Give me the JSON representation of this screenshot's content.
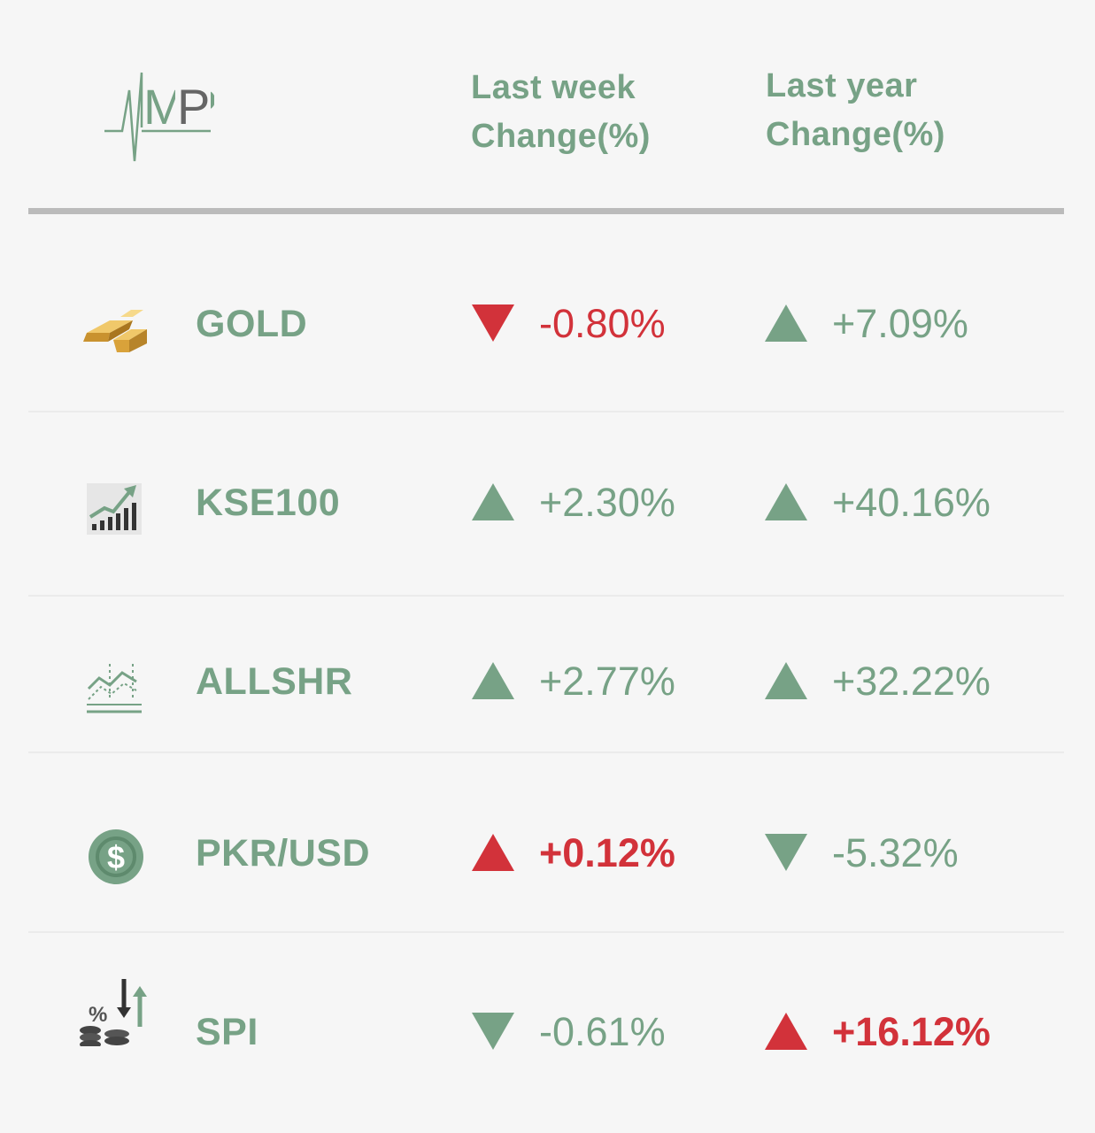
{
  "colors": {
    "accent": "#77a286",
    "negative": "#d2323a",
    "rule": "#bbbbbb",
    "background": "#f6f6f6"
  },
  "header": {
    "logo_text": "MP",
    "last_week": [
      "Last week",
      "Change(%)"
    ],
    "last_year": [
      "Last year",
      "Change(%)"
    ]
  },
  "rows": [
    {
      "name": "GOLD",
      "icon": "gold-bars-icon",
      "week": {
        "value": "-0.80%",
        "direction": "down",
        "color": "negative"
      },
      "year": {
        "value": "+7.09%",
        "direction": "up",
        "color": "accent"
      }
    },
    {
      "name": "KSE100",
      "icon": "bar-chart-up-icon",
      "week": {
        "value": "+2.30%",
        "direction": "up",
        "color": "accent"
      },
      "year": {
        "value": "+40.16%",
        "direction": "up",
        "color": "accent"
      }
    },
    {
      "name": "ALLSHR",
      "icon": "line-chart-icon",
      "week": {
        "value": "+2.77%",
        "direction": "up",
        "color": "accent"
      },
      "year": {
        "value": "+32.22%",
        "direction": "up",
        "color": "accent"
      }
    },
    {
      "name": "PKR/USD",
      "icon": "dollar-coin-icon",
      "week": {
        "value": "+0.12%",
        "direction": "up",
        "color": "negative"
      },
      "year": {
        "value": "-5.32%",
        "direction": "down",
        "color": "accent"
      }
    },
    {
      "name": "SPI",
      "icon": "coins-percent-icon",
      "week": {
        "value": "-0.61%",
        "direction": "down",
        "color": "accent"
      },
      "year": {
        "value": "+16.12%",
        "direction": "up",
        "color": "negative"
      }
    }
  ]
}
